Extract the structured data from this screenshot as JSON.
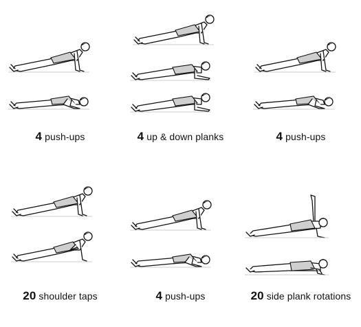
{
  "exercises": [
    {
      "count": "4",
      "label": "push-ups"
    },
    {
      "count": "4",
      "label": "up & down planks"
    },
    {
      "count": "4",
      "label": "push-ups"
    },
    {
      "count": "20",
      "label": "shoulder taps"
    },
    {
      "count": "4",
      "label": "push-ups"
    },
    {
      "count": "20",
      "label": "side plank rotations"
    }
  ]
}
